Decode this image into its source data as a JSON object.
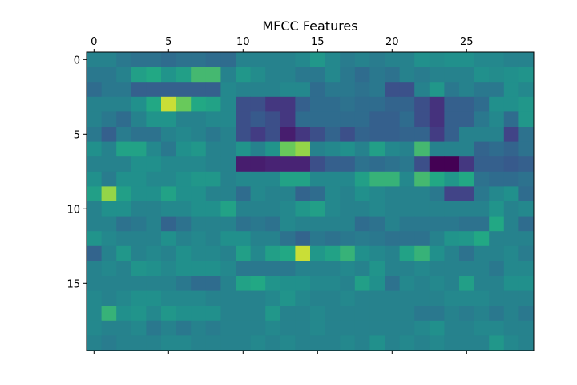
{
  "chart_data": {
    "type": "heatmap",
    "title": "MFCC Features",
    "colormap": "viridis",
    "x_axis_position": "top",
    "x_range": [
      -0.5,
      29.5
    ],
    "y_range": [
      -0.5,
      19.5
    ],
    "y_inverted": true,
    "grid": false,
    "x_ticks": [
      0,
      5,
      10,
      15,
      20,
      25
    ],
    "y_ticks": [
      0,
      5,
      10,
      15
    ],
    "n_cols": 30,
    "n_rows": 20,
    "value_range": [
      0,
      1
    ],
    "values": [
      [
        0.55,
        0.55,
        0.5,
        0.47,
        0.47,
        0.44,
        0.47,
        0.47,
        0.44,
        0.44,
        0.55,
        0.55,
        0.55,
        0.55,
        0.58,
        0.66,
        0.58,
        0.52,
        0.55,
        0.52,
        0.55,
        0.55,
        0.62,
        0.6,
        0.62,
        0.62,
        0.58,
        0.58,
        0.55,
        0.55
      ],
      [
        0.5,
        0.5,
        0.55,
        0.7,
        0.75,
        0.64,
        0.7,
        0.8,
        0.8,
        0.55,
        0.66,
        0.6,
        0.55,
        0.55,
        0.5,
        0.5,
        0.58,
        0.5,
        0.44,
        0.5,
        0.47,
        0.55,
        0.52,
        0.55,
        0.55,
        0.55,
        0.62,
        0.6,
        0.62,
        0.64
      ],
      [
        0.44,
        0.5,
        0.5,
        0.38,
        0.38,
        0.38,
        0.38,
        0.38,
        0.38,
        0.58,
        0.55,
        0.55,
        0.55,
        0.58,
        0.58,
        0.44,
        0.5,
        0.5,
        0.47,
        0.5,
        0.31,
        0.31,
        0.55,
        0.66,
        0.5,
        0.55,
        0.5,
        0.5,
        0.62,
        0.58
      ],
      [
        0.55,
        0.55,
        0.55,
        0.62,
        0.75,
        0.95,
        0.85,
        0.75,
        0.72,
        0.58,
        0.3,
        0.3,
        0.2,
        0.2,
        0.38,
        0.44,
        0.44,
        0.47,
        0.44,
        0.44,
        0.4,
        0.4,
        0.3,
        0.18,
        0.38,
        0.38,
        0.44,
        0.62,
        0.62,
        0.66
      ],
      [
        0.55,
        0.5,
        0.44,
        0.55,
        0.64,
        0.64,
        0.55,
        0.55,
        0.58,
        0.58,
        0.3,
        0.35,
        0.3,
        0.2,
        0.44,
        0.44,
        0.44,
        0.44,
        0.44,
        0.38,
        0.38,
        0.44,
        0.3,
        0.18,
        0.38,
        0.38,
        0.5,
        0.58,
        0.44,
        0.66
      ],
      [
        0.5,
        0.38,
        0.52,
        0.47,
        0.47,
        0.55,
        0.58,
        0.55,
        0.5,
        0.55,
        0.3,
        0.22,
        0.3,
        0.1,
        0.2,
        0.3,
        0.4,
        0.3,
        0.4,
        0.38,
        0.38,
        0.4,
        0.4,
        0.22,
        0.38,
        0.55,
        0.55,
        0.55,
        0.25,
        0.47
      ],
      [
        0.62,
        0.55,
        0.72,
        0.72,
        0.58,
        0.5,
        0.62,
        0.66,
        0.55,
        0.55,
        0.64,
        0.55,
        0.64,
        0.85,
        0.9,
        0.55,
        0.58,
        0.62,
        0.55,
        0.7,
        0.58,
        0.55,
        0.8,
        0.55,
        0.55,
        0.55,
        0.4,
        0.44,
        0.4,
        0.47
      ],
      [
        0.55,
        0.55,
        0.55,
        0.62,
        0.62,
        0.58,
        0.58,
        0.58,
        0.55,
        0.55,
        0.1,
        0.1,
        0.12,
        0.12,
        0.12,
        0.3,
        0.38,
        0.38,
        0.47,
        0.44,
        0.47,
        0.5,
        0.3,
        0.0,
        0.0,
        0.2,
        0.38,
        0.38,
        0.35,
        0.38
      ],
      [
        0.62,
        0.52,
        0.62,
        0.62,
        0.58,
        0.58,
        0.62,
        0.66,
        0.66,
        0.55,
        0.58,
        0.58,
        0.58,
        0.72,
        0.72,
        0.58,
        0.58,
        0.58,
        0.7,
        0.78,
        0.78,
        0.58,
        0.8,
        0.75,
        0.66,
        0.75,
        0.47,
        0.44,
        0.44,
        0.47
      ],
      [
        0.7,
        0.9,
        0.7,
        0.62,
        0.62,
        0.72,
        0.62,
        0.62,
        0.55,
        0.55,
        0.44,
        0.58,
        0.55,
        0.55,
        0.4,
        0.44,
        0.58,
        0.55,
        0.62,
        0.58,
        0.55,
        0.55,
        0.55,
        0.5,
        0.25,
        0.25,
        0.5,
        0.58,
        0.62,
        0.44
      ],
      [
        0.55,
        0.62,
        0.62,
        0.55,
        0.55,
        0.58,
        0.58,
        0.62,
        0.62,
        0.72,
        0.55,
        0.55,
        0.55,
        0.58,
        0.66,
        0.7,
        0.58,
        0.55,
        0.55,
        0.58,
        0.55,
        0.55,
        0.55,
        0.55,
        0.55,
        0.55,
        0.55,
        0.64,
        0.55,
        0.58
      ],
      [
        0.55,
        0.55,
        0.47,
        0.5,
        0.55,
        0.4,
        0.47,
        0.55,
        0.55,
        0.55,
        0.47,
        0.5,
        0.47,
        0.58,
        0.55,
        0.55,
        0.55,
        0.55,
        0.44,
        0.47,
        0.55,
        0.5,
        0.5,
        0.5,
        0.5,
        0.47,
        0.47,
        0.75,
        0.55,
        0.44
      ],
      [
        0.64,
        0.58,
        0.55,
        0.55,
        0.55,
        0.62,
        0.55,
        0.58,
        0.55,
        0.62,
        0.62,
        0.55,
        0.55,
        0.47,
        0.4,
        0.5,
        0.47,
        0.5,
        0.52,
        0.5,
        0.47,
        0.47,
        0.47,
        0.55,
        0.64,
        0.66,
        0.75,
        0.55,
        0.55,
        0.55
      ],
      [
        0.4,
        0.55,
        0.66,
        0.55,
        0.58,
        0.55,
        0.62,
        0.58,
        0.58,
        0.55,
        0.7,
        0.58,
        0.7,
        0.75,
        0.95,
        0.66,
        0.72,
        0.78,
        0.62,
        0.58,
        0.55,
        0.72,
        0.78,
        0.62,
        0.55,
        0.47,
        0.55,
        0.55,
        0.58,
        0.52
      ],
      [
        0.55,
        0.58,
        0.55,
        0.64,
        0.62,
        0.58,
        0.62,
        0.62,
        0.62,
        0.58,
        0.5,
        0.5,
        0.5,
        0.5,
        0.55,
        0.55,
        0.55,
        0.58,
        0.55,
        0.64,
        0.55,
        0.55,
        0.58,
        0.55,
        0.55,
        0.55,
        0.55,
        0.5,
        0.58,
        0.58
      ],
      [
        0.55,
        0.55,
        0.55,
        0.55,
        0.55,
        0.55,
        0.5,
        0.44,
        0.44,
        0.55,
        0.72,
        0.75,
        0.64,
        0.62,
        0.62,
        0.58,
        0.58,
        0.55,
        0.7,
        0.62,
        0.47,
        0.58,
        0.55,
        0.58,
        0.55,
        0.7,
        0.55,
        0.55,
        0.62,
        0.62
      ],
      [
        0.58,
        0.55,
        0.58,
        0.62,
        0.62,
        0.58,
        0.58,
        0.58,
        0.55,
        0.55,
        0.55,
        0.55,
        0.58,
        0.64,
        0.58,
        0.55,
        0.55,
        0.58,
        0.55,
        0.55,
        0.55,
        0.55,
        0.55,
        0.55,
        0.58,
        0.58,
        0.58,
        0.55,
        0.55,
        0.55
      ],
      [
        0.58,
        0.78,
        0.62,
        0.64,
        0.58,
        0.66,
        0.62,
        0.62,
        0.62,
        0.55,
        0.55,
        0.55,
        0.66,
        0.55,
        0.55,
        0.58,
        0.55,
        0.55,
        0.55,
        0.55,
        0.55,
        0.55,
        0.5,
        0.5,
        0.55,
        0.52,
        0.55,
        0.5,
        0.55,
        0.5
      ],
      [
        0.58,
        0.55,
        0.55,
        0.58,
        0.5,
        0.55,
        0.5,
        0.55,
        0.52,
        0.55,
        0.55,
        0.55,
        0.58,
        0.55,
        0.55,
        0.58,
        0.55,
        0.55,
        0.55,
        0.55,
        0.55,
        0.55,
        0.58,
        0.62,
        0.55,
        0.55,
        0.58,
        0.58,
        0.55,
        0.55
      ],
      [
        0.55,
        0.52,
        0.55,
        0.55,
        0.55,
        0.58,
        0.58,
        0.55,
        0.55,
        0.55,
        0.55,
        0.58,
        0.55,
        0.58,
        0.55,
        0.55,
        0.55,
        0.58,
        0.55,
        0.62,
        0.55,
        0.58,
        0.55,
        0.58,
        0.55,
        0.55,
        0.55,
        0.66,
        0.58,
        0.55
      ]
    ]
  }
}
